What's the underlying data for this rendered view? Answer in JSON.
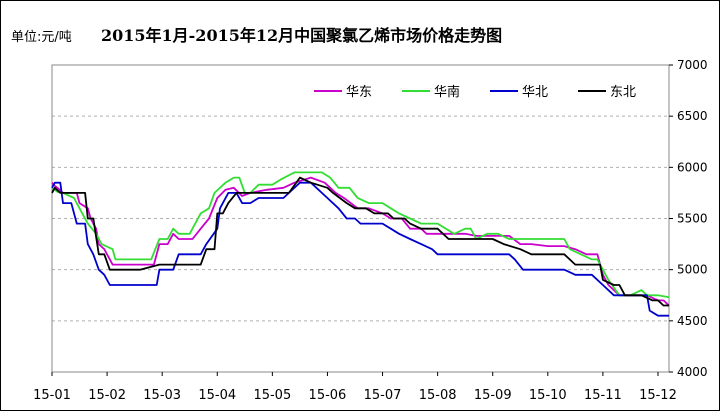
{
  "chart_data": {
    "type": "line",
    "title": "2015年1月-2015年12月中国聚氯乙烯市场价格走势图",
    "unit_label": "单位:元/吨",
    "x": [
      "15-01",
      "15-02",
      "15-03",
      "15-04",
      "15-05",
      "15-06",
      "15-07",
      "15-08",
      "15-09",
      "15-10",
      "15-11",
      "15-12"
    ],
    "x_range": [
      1,
      12.2
    ],
    "ylim": [
      4000,
      7000
    ],
    "yticks": [
      4000,
      4500,
      5000,
      5500,
      6000,
      6500,
      7000
    ],
    "grid": true,
    "legend_position": "top-right",
    "colors": {
      "华东": "#cc00cc",
      "华南": "#33dd33",
      "华北": "#0000cc",
      "东北": "#000000"
    },
    "series": [
      {
        "name": "华东",
        "points": [
          [
            1,
            5850
          ],
          [
            1.05,
            5820
          ],
          [
            1.1,
            5800
          ],
          [
            1.2,
            5750
          ],
          [
            1.3,
            5750
          ],
          [
            1.45,
            5750
          ],
          [
            1.5,
            5650
          ],
          [
            1.65,
            5600
          ],
          [
            1.7,
            5500
          ],
          [
            1.8,
            5400
          ],
          [
            1.85,
            5250
          ],
          [
            1.95,
            5200
          ],
          [
            2.1,
            5050
          ],
          [
            2.3,
            5050
          ],
          [
            2.5,
            5050
          ],
          [
            2.7,
            5050
          ],
          [
            2.85,
            5050
          ],
          [
            2.95,
            5250
          ],
          [
            3.1,
            5250
          ],
          [
            3.2,
            5350
          ],
          [
            3.3,
            5300
          ],
          [
            3.55,
            5300
          ],
          [
            3.7,
            5400
          ],
          [
            3.85,
            5500
          ],
          [
            4.0,
            5700
          ],
          [
            4.15,
            5780
          ],
          [
            4.3,
            5800
          ],
          [
            4.45,
            5720
          ],
          [
            4.6,
            5750
          ],
          [
            4.9,
            5780
          ],
          [
            5.2,
            5800
          ],
          [
            5.4,
            5850
          ],
          [
            5.7,
            5900
          ],
          [
            5.95,
            5850
          ],
          [
            6.15,
            5750
          ],
          [
            6.3,
            5700
          ],
          [
            6.55,
            5600
          ],
          [
            6.75,
            5600
          ],
          [
            7.0,
            5550
          ],
          [
            7.15,
            5500
          ],
          [
            7.35,
            5500
          ],
          [
            7.5,
            5400
          ],
          [
            7.7,
            5400
          ],
          [
            7.8,
            5350
          ],
          [
            8.0,
            5350
          ],
          [
            8.5,
            5350
          ],
          [
            8.7,
            5330
          ],
          [
            8.9,
            5330
          ],
          [
            9.0,
            5330
          ],
          [
            9.3,
            5330
          ],
          [
            9.5,
            5250
          ],
          [
            9.7,
            5250
          ],
          [
            10.0,
            5230
          ],
          [
            10.3,
            5230
          ],
          [
            10.5,
            5200
          ],
          [
            10.7,
            5150
          ],
          [
            10.9,
            5150
          ],
          [
            11.0,
            4950
          ],
          [
            11.1,
            4850
          ],
          [
            11.3,
            4750
          ],
          [
            11.5,
            4750
          ],
          [
            11.7,
            4750
          ],
          [
            11.8,
            4750
          ],
          [
            12.0,
            4700
          ],
          [
            12.1,
            4700
          ],
          [
            12.2,
            4650
          ]
        ]
      },
      {
        "name": "华南",
        "points": [
          [
            1,
            5800
          ],
          [
            1.05,
            5780
          ],
          [
            1.1,
            5760
          ],
          [
            1.2,
            5750
          ],
          [
            1.4,
            5700
          ],
          [
            1.5,
            5600
          ],
          [
            1.65,
            5450
          ],
          [
            1.8,
            5350
          ],
          [
            1.9,
            5250
          ],
          [
            2.1,
            5200
          ],
          [
            2.15,
            5100
          ],
          [
            2.5,
            5100
          ],
          [
            2.8,
            5100
          ],
          [
            2.95,
            5300
          ],
          [
            3.1,
            5300
          ],
          [
            3.2,
            5400
          ],
          [
            3.3,
            5350
          ],
          [
            3.5,
            5350
          ],
          [
            3.6,
            5450
          ],
          [
            3.7,
            5550
          ],
          [
            3.85,
            5600
          ],
          [
            3.95,
            5750
          ],
          [
            4.15,
            5850
          ],
          [
            4.3,
            5900
          ],
          [
            4.4,
            5900
          ],
          [
            4.5,
            5750
          ],
          [
            4.6,
            5750
          ],
          [
            4.75,
            5830
          ],
          [
            5.0,
            5830
          ],
          [
            5.15,
            5880
          ],
          [
            5.4,
            5950
          ],
          [
            5.7,
            5950
          ],
          [
            5.9,
            5950
          ],
          [
            6.05,
            5900
          ],
          [
            6.2,
            5800
          ],
          [
            6.4,
            5800
          ],
          [
            6.55,
            5700
          ],
          [
            6.75,
            5650
          ],
          [
            7.0,
            5650
          ],
          [
            7.15,
            5600
          ],
          [
            7.3,
            5550
          ],
          [
            7.5,
            5500
          ],
          [
            7.7,
            5450
          ],
          [
            7.9,
            5450
          ],
          [
            8.0,
            5450
          ],
          [
            8.3,
            5350
          ],
          [
            8.5,
            5400
          ],
          [
            8.6,
            5400
          ],
          [
            8.7,
            5300
          ],
          [
            8.9,
            5350
          ],
          [
            9.1,
            5350
          ],
          [
            9.3,
            5300
          ],
          [
            9.5,
            5300
          ],
          [
            10.0,
            5300
          ],
          [
            10.3,
            5300
          ],
          [
            10.4,
            5200
          ],
          [
            10.6,
            5150
          ],
          [
            10.8,
            5100
          ],
          [
            10.9,
            5100
          ],
          [
            11.0,
            5000
          ],
          [
            11.1,
            4900
          ],
          [
            11.3,
            4750
          ],
          [
            11.5,
            4750
          ],
          [
            11.7,
            4800
          ],
          [
            11.8,
            4750
          ],
          [
            12.0,
            4750
          ],
          [
            12.2,
            4730
          ]
        ]
      },
      {
        "name": "华北",
        "points": [
          [
            1,
            5800
          ],
          [
            1.05,
            5850
          ],
          [
            1.15,
            5850
          ],
          [
            1.2,
            5650
          ],
          [
            1.35,
            5650
          ],
          [
            1.45,
            5450
          ],
          [
            1.6,
            5450
          ],
          [
            1.65,
            5250
          ],
          [
            1.75,
            5150
          ],
          [
            1.85,
            5000
          ],
          [
            1.95,
            4950
          ],
          [
            2.05,
            4850
          ],
          [
            2.3,
            4850
          ],
          [
            2.6,
            4850
          ],
          [
            2.9,
            4850
          ],
          [
            2.95,
            5000
          ],
          [
            3.1,
            5000
          ],
          [
            3.2,
            5000
          ],
          [
            3.3,
            5150
          ],
          [
            3.5,
            5150
          ],
          [
            3.7,
            5150
          ],
          [
            3.8,
            5250
          ],
          [
            4.0,
            5400
          ],
          [
            4.05,
            5600
          ],
          [
            4.2,
            5750
          ],
          [
            4.35,
            5750
          ],
          [
            4.45,
            5650
          ],
          [
            4.6,
            5650
          ],
          [
            4.75,
            5700
          ],
          [
            5.0,
            5700
          ],
          [
            5.2,
            5700
          ],
          [
            5.5,
            5850
          ],
          [
            5.7,
            5850
          ],
          [
            6.0,
            5700
          ],
          [
            6.2,
            5600
          ],
          [
            6.35,
            5500
          ],
          [
            6.5,
            5500
          ],
          [
            6.6,
            5450
          ],
          [
            6.8,
            5450
          ],
          [
            7.0,
            5450
          ],
          [
            7.15,
            5400
          ],
          [
            7.3,
            5350
          ],
          [
            7.5,
            5300
          ],
          [
            7.7,
            5250
          ],
          [
            7.9,
            5200
          ],
          [
            8.0,
            5150
          ],
          [
            8.5,
            5150
          ],
          [
            9.0,
            5150
          ],
          [
            9.3,
            5150
          ],
          [
            9.4,
            5100
          ],
          [
            9.55,
            5000
          ],
          [
            9.8,
            5000
          ],
          [
            10.0,
            5000
          ],
          [
            10.3,
            5000
          ],
          [
            10.5,
            4950
          ],
          [
            10.8,
            4950
          ],
          [
            11.0,
            4850
          ],
          [
            11.2,
            4750
          ],
          [
            11.5,
            4750
          ],
          [
            11.8,
            4750
          ],
          [
            11.85,
            4600
          ],
          [
            12.0,
            4550
          ],
          [
            12.2,
            4550
          ]
        ]
      },
      {
        "name": "东北",
        "points": [
          [
            1,
            5750
          ],
          [
            1.05,
            5800
          ],
          [
            1.15,
            5750
          ],
          [
            1.4,
            5750
          ],
          [
            1.6,
            5750
          ],
          [
            1.65,
            5500
          ],
          [
            1.75,
            5500
          ],
          [
            1.85,
            5150
          ],
          [
            1.95,
            5150
          ],
          [
            2.05,
            5000
          ],
          [
            2.3,
            5000
          ],
          [
            2.6,
            5000
          ],
          [
            2.95,
            5050
          ],
          [
            3.2,
            5050
          ],
          [
            3.5,
            5050
          ],
          [
            3.7,
            5050
          ],
          [
            3.8,
            5200
          ],
          [
            3.95,
            5200
          ],
          [
            4.0,
            5550
          ],
          [
            4.1,
            5550
          ],
          [
            4.2,
            5650
          ],
          [
            4.35,
            5750
          ],
          [
            4.6,
            5750
          ],
          [
            5.0,
            5750
          ],
          [
            5.3,
            5750
          ],
          [
            5.5,
            5900
          ],
          [
            5.7,
            5850
          ],
          [
            6.0,
            5800
          ],
          [
            6.1,
            5750
          ],
          [
            6.35,
            5650
          ],
          [
            6.5,
            5600
          ],
          [
            6.7,
            5600
          ],
          [
            6.85,
            5550
          ],
          [
            7.1,
            5550
          ],
          [
            7.2,
            5500
          ],
          [
            7.4,
            5500
          ],
          [
            7.5,
            5450
          ],
          [
            7.7,
            5400
          ],
          [
            8.0,
            5400
          ],
          [
            8.2,
            5300
          ],
          [
            8.5,
            5300
          ],
          [
            8.7,
            5300
          ],
          [
            9.0,
            5300
          ],
          [
            9.2,
            5250
          ],
          [
            9.5,
            5200
          ],
          [
            9.7,
            5150
          ],
          [
            10.0,
            5150
          ],
          [
            10.3,
            5150
          ],
          [
            10.5,
            5050
          ],
          [
            10.8,
            5050
          ],
          [
            10.95,
            5050
          ],
          [
            11.0,
            4900
          ],
          [
            11.2,
            4850
          ],
          [
            11.3,
            4850
          ],
          [
            11.4,
            4750
          ],
          [
            11.5,
            4750
          ],
          [
            11.7,
            4750
          ],
          [
            11.9,
            4700
          ],
          [
            12.0,
            4700
          ],
          [
            12.1,
            4650
          ],
          [
            12.2,
            4650
          ]
        ]
      }
    ]
  }
}
